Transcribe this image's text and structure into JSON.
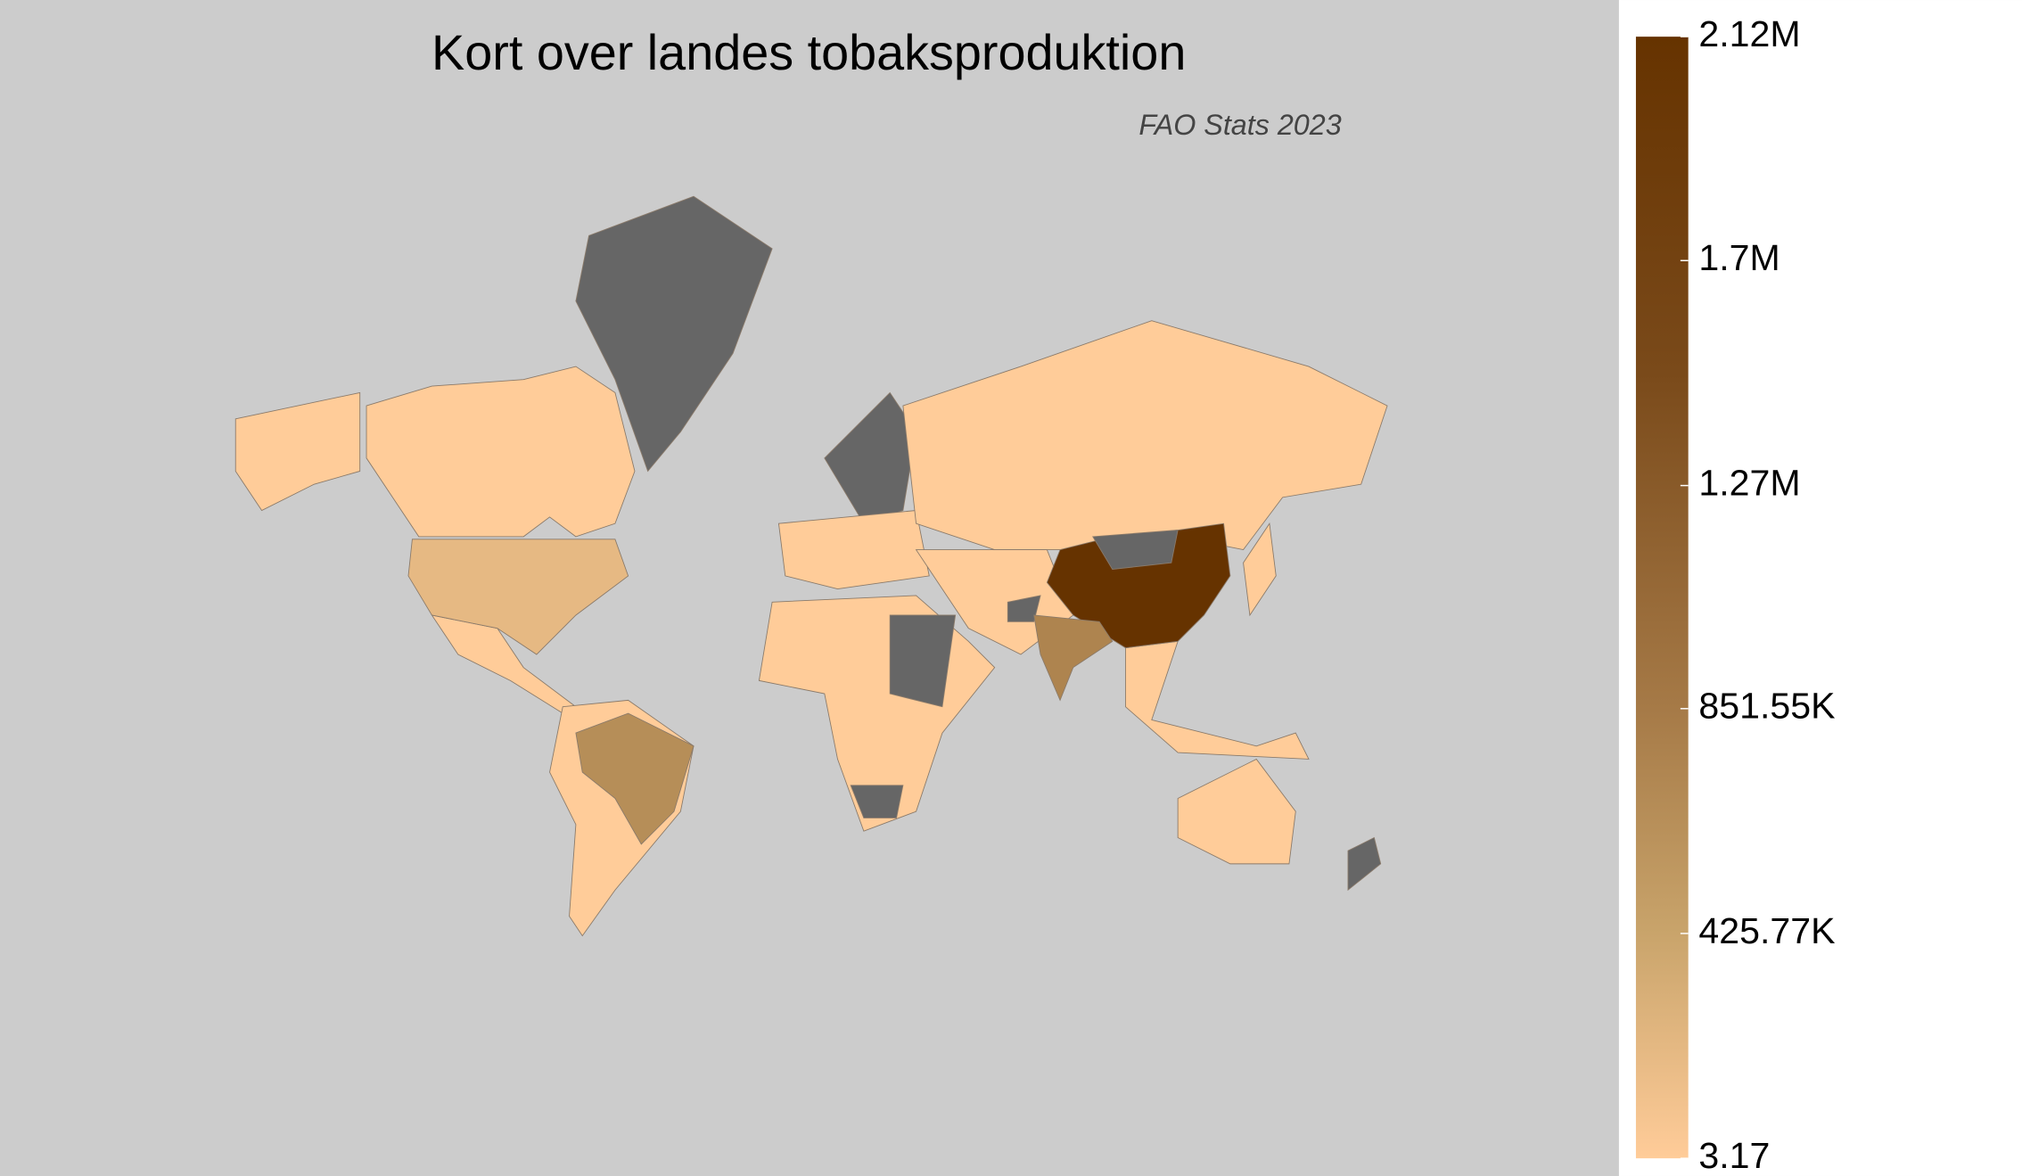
{
  "chart_data": {
    "type": "choropleth",
    "title": "Kort over landes tobaksproduktion",
    "subtitle": "FAO Stats 2023",
    "values": [
      2120000,
      750000,
      650000,
      200000
    ],
    "clim": [
      3.17,
      2124000
    ],
    "cticks": [
      3.17,
      {
        "value": 425770,
        "label": "425.77K"
      },
      {
        "value": 851550,
        "label": "851.55K"
      },
      {
        "value": 1274000,
        "label": "1.27M"
      },
      {
        "value": 1700000,
        "label": "1.7M"
      },
      {
        "value": 2124000,
        "label": "2.12M"
      }
    ],
    "colorscale": [
      [
        0,
        "#ffcc99"
      ],
      [
        0.2,
        "#c9a46b"
      ],
      [
        0.4,
        "#a67a47"
      ],
      [
        0.7,
        "#7a4a1a"
      ],
      [
        1,
        "#663300"
      ]
    ],
    "missing_color": "#666666"
  }
}
